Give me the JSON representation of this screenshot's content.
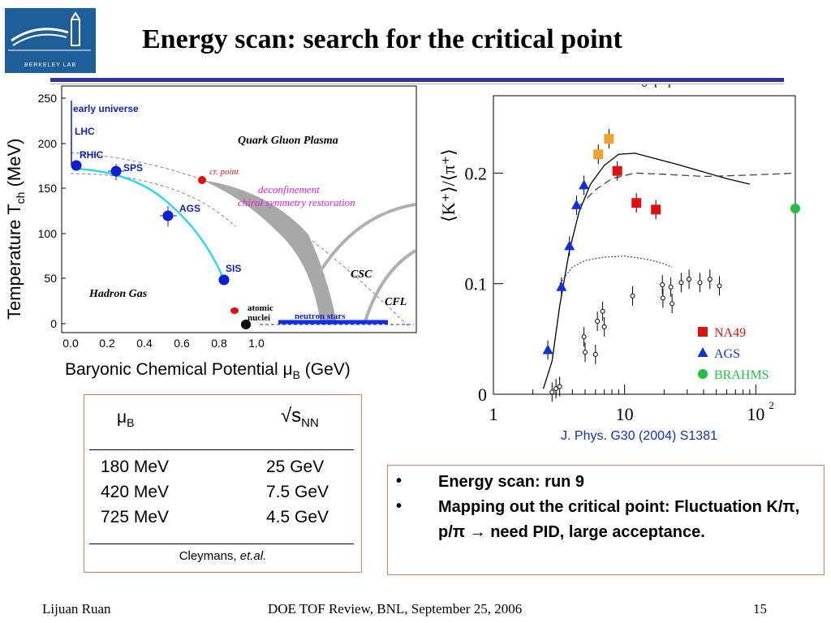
{
  "slide": {
    "title": "Energy scan: search for the critical point",
    "logo_text": "BERKELEY LAB"
  },
  "phase_diagram": {
    "ylabel": "Temperature T",
    "ylabel_sub": "ch",
    "ylabel_unit": " (MeV)",
    "xlabel": "Baryonic Chemical Potential μ",
    "xlabel_sub": "B",
    "xlabel_unit": " (GeV)",
    "y_ticks": [
      "250",
      "200",
      "150",
      "100",
      "50",
      "0"
    ],
    "x_ticks": [
      "0.0",
      "0.2",
      "0.4",
      "0.6",
      "0.8",
      "1.0"
    ],
    "labels": {
      "early_universe": "early universe",
      "lhc": "LHC",
      "rhic": "RHIC",
      "sps": "SPS",
      "ags": "AGS",
      "sis": "SIS",
      "qgp": "Quark Gluon Plasma",
      "crit_point": "cr. point",
      "deconfinement": "deconfinement",
      "chiral": "chiral symmetry restoration",
      "hadron_gas": "Hadron Gas",
      "csc": "CSC",
      "cfl": "CFL",
      "atomic": "atomic",
      "nuclei": "nuclei",
      "neutron_stars": "neutron stars"
    },
    "colors": {
      "points": "#0a1fd6",
      "freezeout": "#31d6f0",
      "crit": "#e01010",
      "region": "#a8a8a8"
    }
  },
  "chart_data": {
    "type": "scatter",
    "ylabel": "⟨K⁺⟩/⟨π⁺⟩",
    "x_scale": "log",
    "xlim": [
      1,
      200
    ],
    "ylim": [
      0,
      0.27
    ],
    "x_tick_labels": [
      "1",
      "10",
      "10"
    ],
    "x_tick_sup": "2",
    "y_tick_labels": [
      "0",
      "0.1",
      "0.2"
    ],
    "series": [
      {
        "name": "NA49",
        "color": "#e01010",
        "marker": "square",
        "x": [
          8.8,
          12.3,
          17.3
        ],
        "y": [
          0.202,
          0.173,
          0.167
        ]
      },
      {
        "name": "AGS",
        "color": "#1030e0",
        "marker": "triangle",
        "x": [
          2.6,
          3.3,
          3.8,
          4.3,
          4.9
        ],
        "y": [
          0.04,
          0.097,
          0.134,
          0.171,
          0.189
        ]
      },
      {
        "name": "BRAHMS",
        "color": "#20c040",
        "marker": "circle",
        "x": [
          200
        ],
        "y": [
          0.168
        ]
      },
      {
        "name": "p+p",
        "color": "#000000",
        "marker": "open-circle",
        "x": [
          2.8,
          3.0,
          3.2,
          4.9,
          5.0,
          6.0,
          6.2,
          6.8,
          7.0,
          11.5,
          19.4,
          19.6,
          22.5,
          23.0,
          27.0,
          31.0,
          37.5,
          44.7,
          52.8
        ],
        "y": [
          0.002,
          0.005,
          0.007,
          0.052,
          0.038,
          0.036,
          0.066,
          0.075,
          0.061,
          0.089,
          0.099,
          0.087,
          0.097,
          0.082,
          0.101,
          0.104,
          0.101,
          0.104,
          0.098
        ]
      }
    ],
    "extra_points": {
      "color": "#f0a030",
      "x": [
        6.3,
        7.6
      ],
      "y": [
        0.217,
        0.231
      ]
    },
    "legend": "bottom-right",
    "reference": "J. Phys. G30 (2004) S1381"
  },
  "table": {
    "col1_header": "μ",
    "col1_sub": "B",
    "col2_header": "√s",
    "col2_sub": "NN",
    "rows": [
      {
        "mu": "180 MeV",
        "sqrt": "25  GeV"
      },
      {
        "mu": "420 MeV",
        "sqrt": "7.5 GeV"
      },
      {
        "mu": "725 MeV",
        "sqrt": "4.5 GeV"
      }
    ],
    "credit": "Cleymans, ",
    "credit_italic": "et.al."
  },
  "bullets": {
    "marker": "•",
    "items": [
      "Energy scan: run 9",
      "Mapping out the critical point: Fluctuation K/π, p/π → need PID, large acceptance."
    ]
  },
  "footer": {
    "author": "Lijuan Ruan",
    "event": "DOE TOF Review, BNL, September 25, 2006",
    "page": "15"
  }
}
